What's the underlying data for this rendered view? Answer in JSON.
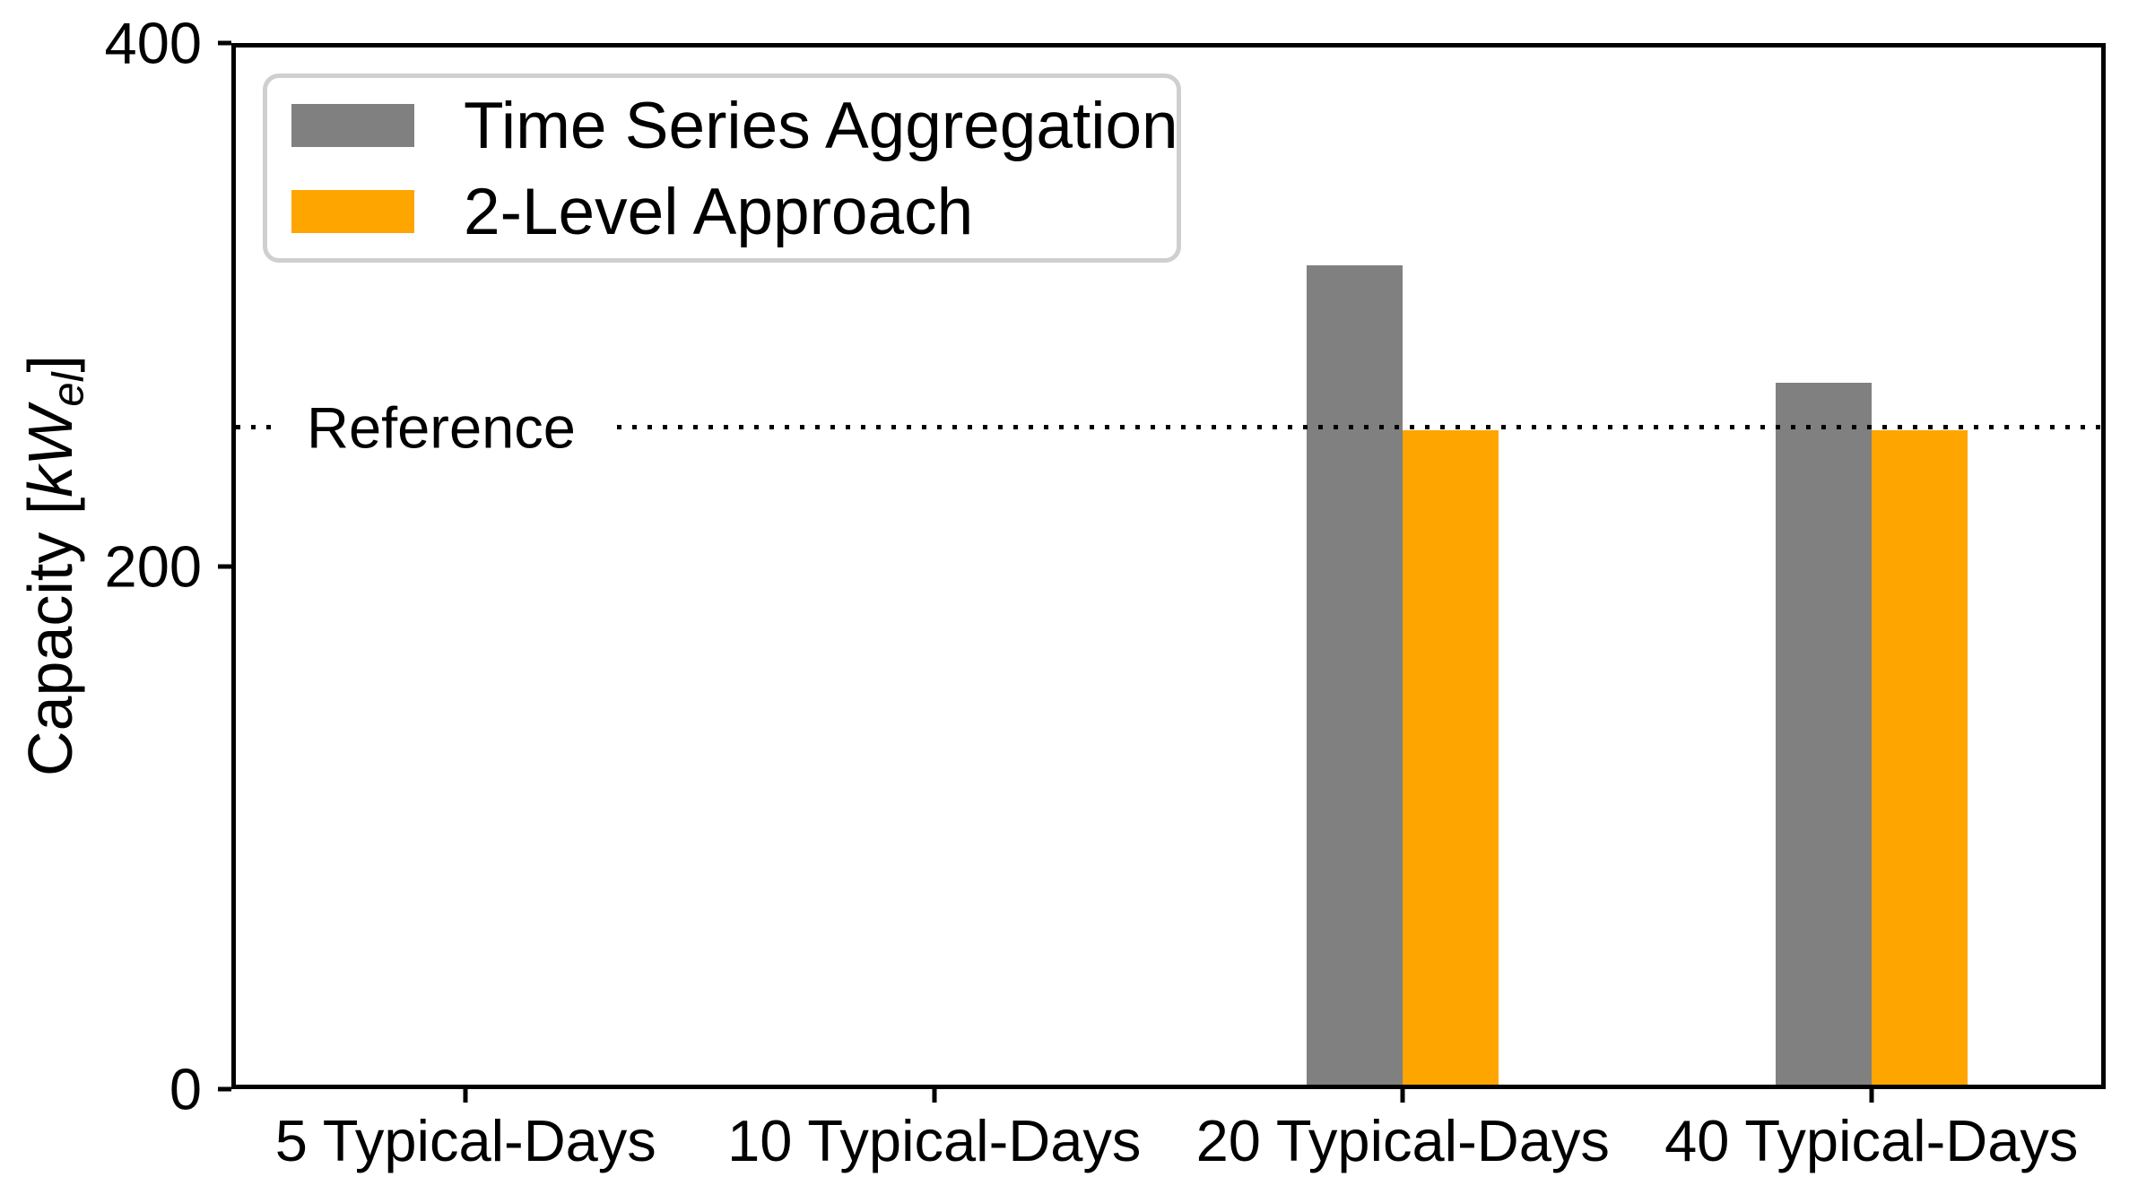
{
  "chart_data": {
    "type": "bar",
    "title": "",
    "xlabel": "",
    "ylabel": "Capacity [kW_el]",
    "ylabel_parts": {
      "prefix": "Capacity [",
      "math": "kW",
      "sub": "el",
      "suffix": "]"
    },
    "categories": [
      "5 Typical-Days",
      "10 Typical-Days",
      "20 Typical-Days",
      "40 Typical-Days"
    ],
    "series": [
      {
        "name": "Time Series Aggregation",
        "color": "#808080",
        "values": [
          0,
          0,
          315,
          270
        ]
      },
      {
        "name": "2-Level Approach",
        "color": "#FFA500",
        "values": [
          0,
          0,
          252,
          252
        ]
      }
    ],
    "reference_line": {
      "label": "Reference",
      "value": 253,
      "style": "dotted",
      "color": "#000000"
    },
    "ylim": [
      0,
      400
    ],
    "yticks": [
      0,
      200,
      400
    ],
    "legend_position": "upper left",
    "grid": false,
    "axis_color": "#000000",
    "background_color": "#ffffff"
  }
}
